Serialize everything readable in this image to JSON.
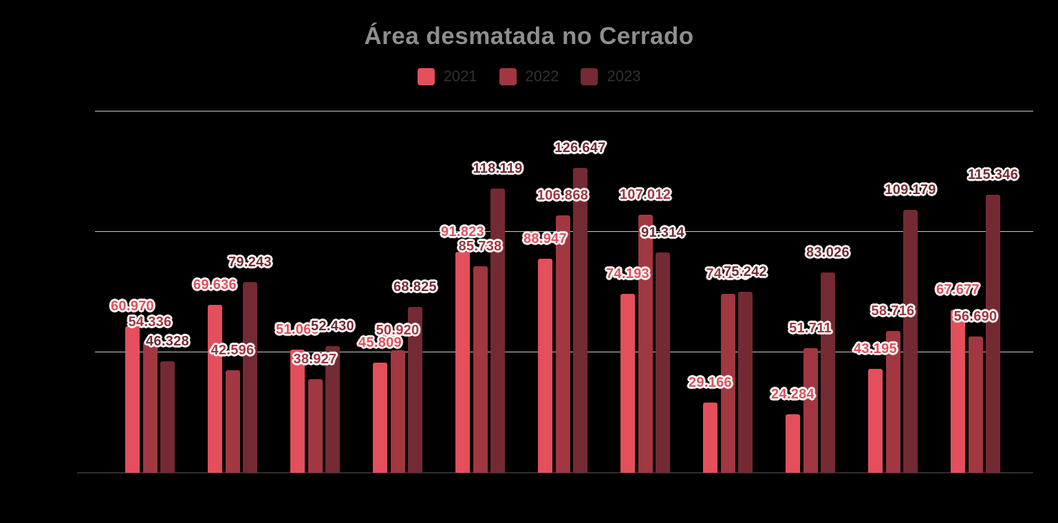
{
  "page": {
    "background": "#000000",
    "title_color": "#8E8E8E",
    "legend_text_color": "#303134",
    "gridline_color": "#CBCBCB",
    "baseline_color": "#2E2E2E"
  },
  "chart_data": {
    "type": "bar",
    "title": "Área desmatada no Cerrado",
    "legend_position": "top",
    "grid": "horizontal",
    "n_groups": 11,
    "categories_visible": false,
    "ylim": [
      0,
      150000
    ],
    "gridline_step": 50000,
    "series": [
      {
        "name": "2021",
        "color": "#E44F5C",
        "values": [
          60970,
          69636,
          51069,
          45809,
          91823,
          88947,
          74193,
          29166,
          24284,
          43195,
          67677
        ],
        "labels": [
          "60.970",
          "69.636",
          "51.069",
          "45.809",
          "91.823",
          "88.947",
          "74.193",
          "29.166",
          "24.284",
          "43.195",
          "67.677"
        ]
      },
      {
        "name": "2022",
        "color": "#A13741",
        "values": [
          54336,
          42596,
          38927,
          50920,
          85738,
          106868,
          107012,
          74150,
          51711,
          58716,
          56690
        ],
        "labels": [
          "54.336",
          "42.596",
          "38.927",
          "50.920",
          "85.738",
          "106.868",
          "107.012",
          "74.150",
          "51.711",
          "58.716",
          "56.690"
        ]
      },
      {
        "name": "2023",
        "color": "#742A32",
        "values": [
          46328,
          79243,
          52430,
          68825,
          118119,
          126647,
          91314,
          75242,
          83026,
          109179,
          115346
        ],
        "labels": [
          "46.328",
          "79.243",
          "52.430",
          "68.825",
          "118.119",
          "126.647",
          "91.314",
          "75.242",
          "83.026",
          "109.179",
          "115.346"
        ]
      }
    ],
    "partially_occluded_labels": [
      {
        "series": "2021",
        "group_index": 2,
        "visible_text": "51.06",
        "hidden_part_estimated": true
      },
      {
        "series": "2022",
        "group_index": 7,
        "visible_text": "74.",
        "hidden_part_estimated": true
      }
    ]
  }
}
